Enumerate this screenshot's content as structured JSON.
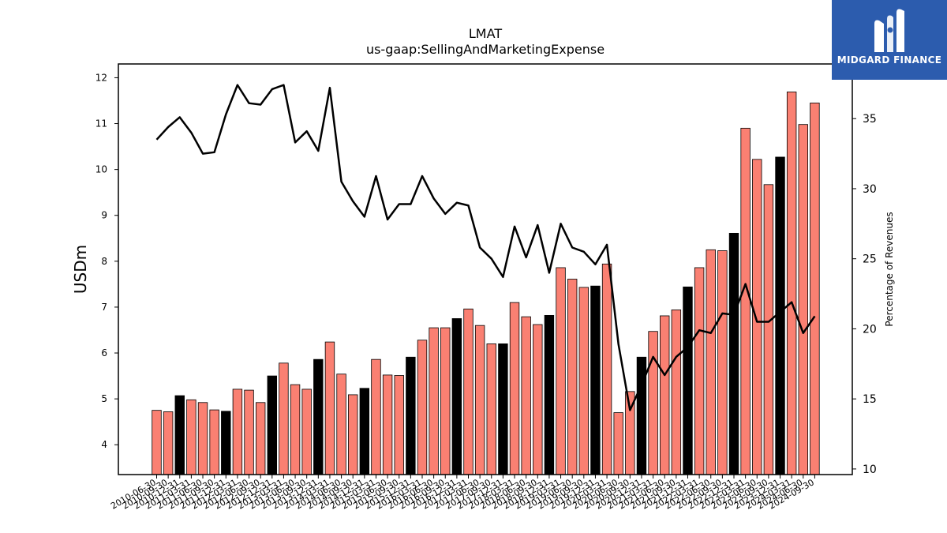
{
  "logo": {
    "text": "MIDGARD FINANCE",
    "bg_color": "#2c5cae"
  },
  "chart_data": {
    "type": "bar",
    "title": "LMAT",
    "subtitle": "us-gaap:SellingAndMarketingExpense",
    "ylabel": "USDm",
    "y2label": "Percentage of Revenues",
    "ylim": [
      3.35,
      12.3
    ],
    "y2lim": [
      9.6,
      38.9
    ],
    "yticks": [
      4,
      5,
      6,
      7,
      8,
      9,
      10,
      11,
      12
    ],
    "y2ticks": [
      10,
      15,
      20,
      25,
      30,
      35
    ],
    "colors": {
      "quarter_bar": "#fa8072",
      "annual_bar": "#000000",
      "line": "#000000"
    },
    "categories": [
      "2010-06-30",
      "2010-09-30",
      "2010-12-31",
      "2011-03-31",
      "2011-06-30",
      "2011-09-30",
      "2011-12-31",
      "2012-03-31",
      "2012-06-30",
      "2012-09-30",
      "2012-12-31",
      "2013-03-31",
      "2013-06-30",
      "2013-09-30",
      "2013-12-31",
      "2014-03-31",
      "2014-06-30",
      "2014-09-30",
      "2014-12-31",
      "2015-03-31",
      "2015-06-30",
      "2015-09-30",
      "2015-12-31",
      "2016-03-31",
      "2016-06-30",
      "2016-09-30",
      "2016-12-31",
      "2017-03-31",
      "2017-06-30",
      "2017-09-30",
      "2017-12-31",
      "2018-03-31",
      "2018-06-30",
      "2018-09-30",
      "2018-12-31",
      "2019-03-31",
      "2019-06-30",
      "2019-09-30",
      "2019-12-31",
      "2020-03-31",
      "2020-06-30",
      "2020-09-30",
      "2020-12-31",
      "2021-03-31",
      "2021-06-30",
      "2021-09-30",
      "2021-12-31",
      "2022-03-31",
      "2022-06-30",
      "2022-09-30",
      "2022-12-31",
      "2023-03-31",
      "2023-06-30",
      "2023-09-30",
      "2023-12-31",
      "2024-03-31",
      "2024-06-30",
      "2024-09-30"
    ],
    "series": [
      {
        "type": "bar",
        "values": [
          4.75,
          4.72,
          5.07,
          4.98,
          4.92,
          4.76,
          4.73,
          5.21,
          5.19,
          4.92,
          5.5,
          5.78,
          5.31,
          5.21,
          5.86,
          6.24,
          5.54,
          5.09,
          5.23,
          5.86,
          5.52,
          5.51,
          5.91,
          6.28,
          6.55,
          6.55,
          6.75,
          6.96,
          6.6,
          6.2,
          6.2,
          7.1,
          6.79,
          6.62,
          6.82,
          7.86,
          7.61,
          7.43,
          7.46,
          7.94,
          4.7,
          5.16,
          5.91,
          6.47,
          6.81,
          6.94,
          7.44,
          7.86,
          8.25,
          8.23,
          8.61,
          10.9,
          10.22,
          9.67,
          10.27,
          11.69,
          10.98,
          11.45
        ],
        "annual": [
          false,
          false,
          true,
          false,
          false,
          false,
          true,
          false,
          false,
          false,
          true,
          false,
          false,
          false,
          true,
          false,
          false,
          false,
          true,
          false,
          false,
          false,
          true,
          false,
          false,
          false,
          true,
          false,
          false,
          false,
          true,
          false,
          false,
          false,
          true,
          false,
          false,
          false,
          true,
          false,
          false,
          false,
          true,
          false,
          false,
          false,
          true,
          false,
          false,
          false,
          true,
          false,
          false,
          false,
          true,
          false,
          false,
          false
        ]
      },
      {
        "type": "line",
        "axis": "right",
        "values": [
          33.5,
          34.4,
          35.1,
          34.0,
          32.5,
          32.6,
          35.3,
          37.4,
          36.1,
          36.0,
          37.1,
          37.4,
          33.3,
          34.1,
          32.7,
          37.2,
          30.5,
          29.1,
          28.0,
          30.9,
          27.8,
          28.9,
          28.9,
          30.9,
          29.3,
          28.2,
          29.0,
          28.8,
          25.8,
          25.0,
          23.7,
          27.3,
          25.1,
          27.4,
          24.0,
          27.5,
          25.8,
          25.5,
          24.6,
          26.0,
          18.9,
          14.2,
          16.0,
          18.0,
          16.7,
          18.0,
          18.7,
          19.9,
          19.7,
          21.1,
          21.0,
          23.2,
          20.5,
          20.5,
          21.2,
          21.9,
          19.7,
          20.9
        ]
      }
    ],
    "grid": false,
    "legend": "none"
  }
}
